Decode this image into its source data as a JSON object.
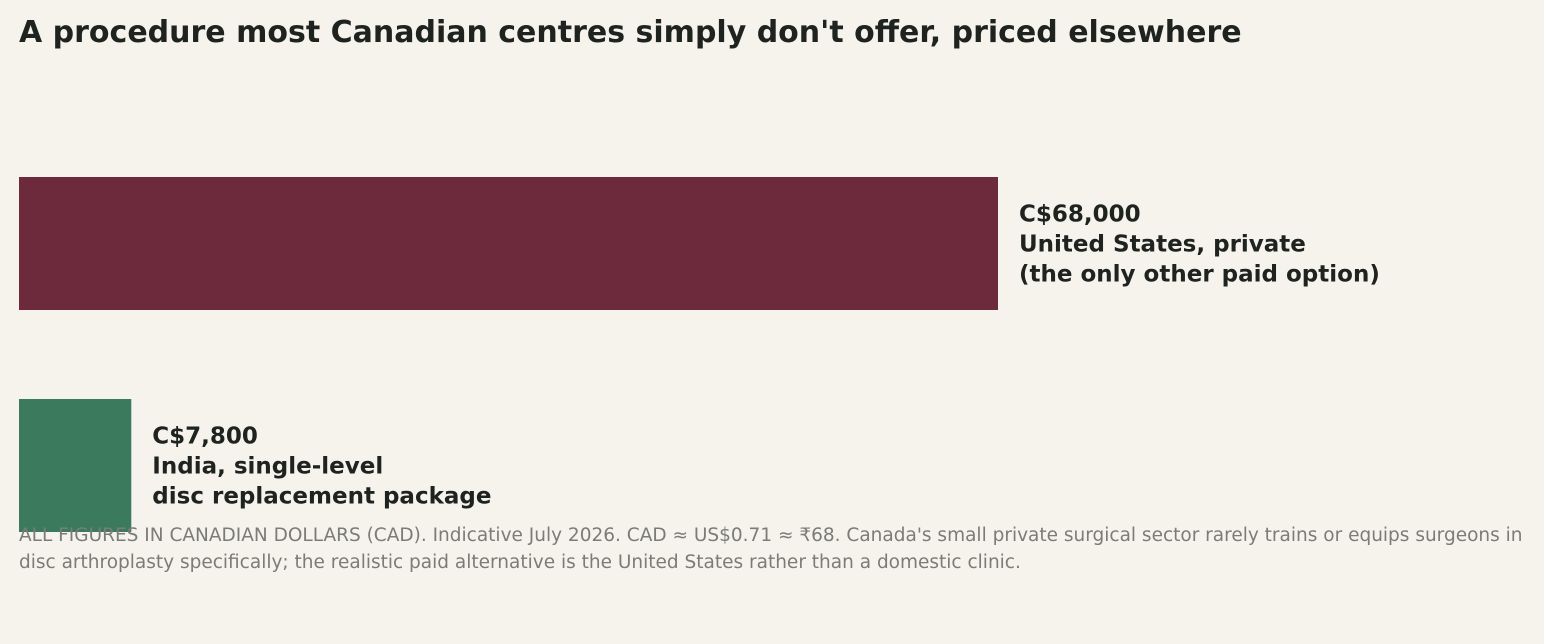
{
  "title": "A procedure most Canadian centres simply don't offer, priced elsewhere",
  "footnote": "ALL FIGURES IN CANADIAN DOLLARS (CAD). Indicative July 2026. CAD ≈ US$0.71 ≈ ₹68. Canada's small private surgical sector rarely trains or equips surgeons in disc arthroplasty specifically; the realistic paid alternative is the United States rather than a domestic clinic.",
  "chart_data": {
    "type": "bar",
    "orientation": "horizontal",
    "title": "A procedure most Canadian centres simply don't offer, priced elsewhere",
    "grid": false,
    "legend": "none",
    "bars": [
      {
        "value": 68000,
        "value_label": "C$68,000",
        "label_lines": [
          "C$68,000",
          "United States, private",
          "(the only other paid option)"
        ],
        "color": "#6c2a3c"
      },
      {
        "value": 7800,
        "value_label": "C$7,800",
        "label_lines": [
          "C$7,800",
          "India, single-level",
          "disc replacement package"
        ],
        "color": "#3c7a5e"
      }
    ]
  }
}
